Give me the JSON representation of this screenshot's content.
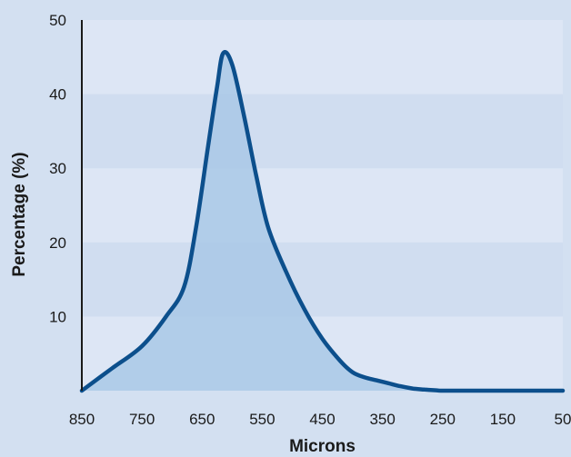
{
  "chart_data": {
    "type": "area",
    "title": "",
    "xlabel": "Microns",
    "ylabel": "Percentage (%)",
    "x_reversed": true,
    "xlim": [
      850,
      50
    ],
    "ylim": [
      0,
      50
    ],
    "x_ticks": [
      850,
      750,
      650,
      550,
      450,
      350,
      250,
      150,
      50
    ],
    "y_ticks": [
      10,
      20,
      30,
      40,
      50
    ],
    "grid": "alternating horizontal bands",
    "series": [
      {
        "x": [
          850,
          800,
          750,
          710,
          680,
          660,
          640,
          625,
          615,
          600,
          580,
          560,
          540,
          510,
          480,
          450,
          420,
          400,
          380,
          360,
          340,
          320,
          300,
          280,
          260,
          250,
          200,
          150,
          100,
          50
        ],
        "y": [
          0,
          3,
          6,
          10,
          14,
          22,
          33,
          41,
          45.5,
          44,
          37,
          29,
          22,
          16,
          11,
          7,
          4,
          2.5,
          1.8,
          1.4,
          1,
          0.6,
          0.3,
          0.15,
          0.05,
          0,
          0,
          0,
          0,
          0
        ]
      }
    ],
    "colors": {
      "background": "#d3e0f1",
      "band_light": "#dde6f5",
      "band_dark": "#d0ddf0",
      "fill": "#a9c8e6",
      "line": "#0c4f8c",
      "axis": "#1a1a1a"
    }
  }
}
